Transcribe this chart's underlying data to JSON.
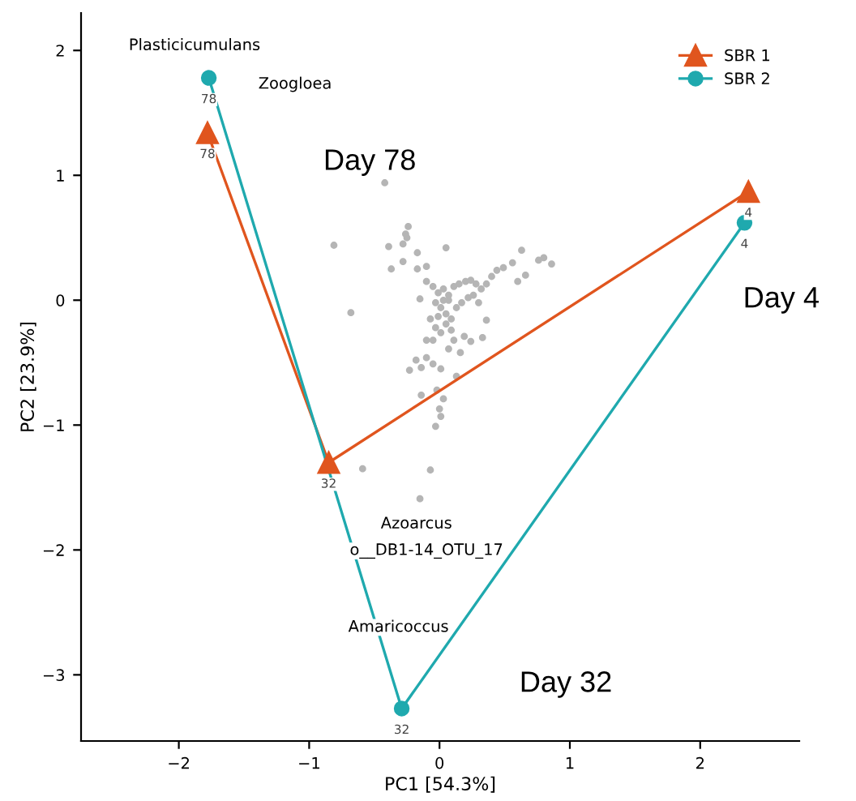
{
  "chart_data": {
    "type": "line",
    "xlabel": "PC1 [54.3%]",
    "ylabel": "PC2 [23.9%]",
    "xlim": [
      -2.75,
      2.76
    ],
    "ylim": [
      -3.53,
      2.3
    ],
    "xticks": [
      -2,
      -1,
      0,
      1,
      2
    ],
    "yticks": [
      -3,
      -2,
      -1,
      0,
      1,
      2
    ],
    "grid": false,
    "legend": "top right",
    "series": [
      {
        "type": "scatter",
        "color": "#b5b5b5",
        "marker": "circle",
        "x": [
          -0.81,
          -0.39,
          -0.28,
          -0.24,
          -0.26,
          -0.25,
          0.05,
          -0.17,
          0.63,
          0.76,
          0.8,
          0.86,
          -0.37,
          -0.28,
          -0.17,
          -0.1,
          0.56,
          0.66,
          0.6,
          -0.68,
          -0.15,
          0.36,
          0.33,
          0.24,
          0.19,
          -0.23,
          -0.18,
          -0.14,
          -0.1,
          -0.05,
          0.01,
          0.13,
          0.16,
          0.07,
          -0.14,
          -0.02,
          0.03,
          0.0,
          0.01,
          -0.03,
          -0.59,
          -0.07,
          -0.15,
          -0.1,
          -0.05,
          -0.01,
          0.03,
          0.07,
          0.11,
          0.15,
          0.2,
          0.24,
          0.28,
          0.32,
          0.36,
          0.4,
          0.44,
          0.49,
          -0.03,
          0.01,
          0.05,
          0.09,
          -0.07,
          -0.03,
          0.01,
          0.05,
          0.09,
          0.13,
          0.17,
          0.22,
          0.26,
          0.3,
          -0.05,
          -0.1,
          0.11,
          0.07,
          -0.01,
          0.03,
          -0.42
        ],
        "values": [
          0.44,
          0.43,
          0.45,
          0.59,
          0.53,
          0.5,
          0.42,
          0.38,
          0.4,
          0.32,
          0.34,
          0.29,
          0.25,
          0.31,
          0.25,
          0.27,
          0.3,
          0.2,
          0.15,
          -0.1,
          0.01,
          -0.16,
          -0.3,
          -0.33,
          -0.29,
          -0.56,
          -0.48,
          -0.54,
          -0.46,
          -0.51,
          -0.55,
          -0.61,
          -0.42,
          -0.39,
          -0.76,
          -0.72,
          -0.79,
          -0.87,
          -0.93,
          -1.01,
          -1.35,
          -1.36,
          -1.59,
          0.15,
          0.11,
          0.06,
          0.09,
          0.04,
          0.11,
          0.13,
          0.15,
          0.16,
          0.13,
          0.09,
          0.13,
          0.19,
          0.24,
          0.26,
          -0.02,
          -0.06,
          -0.11,
          -0.15,
          -0.15,
          -0.22,
          -0.26,
          -0.19,
          -0.24,
          -0.06,
          -0.02,
          0.02,
          0.04,
          -0.02,
          -0.32,
          -0.32,
          -0.32,
          0.0,
          -0.13,
          0.0,
          0.94
        ]
      },
      {
        "name": "SBR 1",
        "color": "#e0551e",
        "marker": "triangle",
        "x": [
          2.37,
          -0.85,
          -1.78
        ],
        "values": [
          0.87,
          -1.3,
          1.34
        ]
      },
      {
        "name": "SBR 2",
        "color": "#1fa9ae",
        "marker": "circle",
        "x": [
          2.34,
          -0.29,
          -1.77
        ],
        "values": [
          0.62,
          -3.27,
          1.78
        ]
      }
    ],
    "annotations": [
      "Plasticicumulans",
      "Zoogloea",
      "Azoarcus",
      "o__DB1-14_OTU_17",
      "Amaricoccus",
      "Day 78",
      "Day 4",
      "Day 32",
      {
        "text": "4",
        "x": 2.37,
        "y": 0.87
      },
      {
        "text": "32",
        "x": -0.85,
        "y": -1.3
      },
      {
        "text": "78",
        "x": -1.78,
        "y": 1.34
      },
      {
        "text": "4",
        "x": 2.34,
        "y": 0.62
      },
      {
        "text": "32",
        "x": -0.29,
        "y": -3.27
      },
      {
        "text": "78",
        "x": -1.77,
        "y": 1.78
      }
    ]
  }
}
